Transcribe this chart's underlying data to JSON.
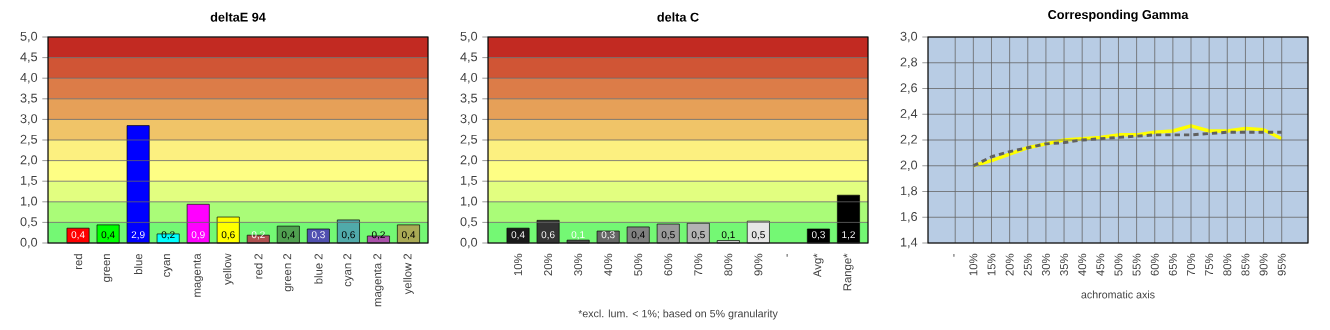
{
  "chart_data": [
    {
      "type": "bar",
      "title": "deltaE 94",
      "categories": [
        "red",
        "green",
        "blue",
        "cyan",
        "magenta",
        "yellow",
        "red 2",
        "green 2",
        "blue 2",
        "cyan 2",
        "magenta 2",
        "yellow 2"
      ],
      "values": [
        0.36,
        0.44,
        2.85,
        0.22,
        0.94,
        0.63,
        0.19,
        0.41,
        0.34,
        0.56,
        0.17,
        0.44
      ],
      "value_labels": [
        "0,4",
        "0,4",
        "2,9",
        "0,2",
        "0,9",
        "0,6",
        "0,2",
        "0,4",
        "0,3",
        "0,6",
        "0,2",
        "0,4"
      ],
      "colors": [
        "#ff0000",
        "#00ff00",
        "#0000ff",
        "#00ffff",
        "#ff00ff",
        "#ffff00",
        "#b05050",
        "#50a050",
        "#5050b0",
        "#50aaaa",
        "#aa50aa",
        "#aaaa55"
      ],
      "ylim": [
        0,
        5
      ],
      "yticks": [
        {
          "value": 0,
          "label": "0,0"
        },
        {
          "value": 0.5,
          "label": "0,5"
        },
        {
          "value": 1,
          "label": "1,0"
        },
        {
          "value": 1.5,
          "label": "1,5"
        },
        {
          "value": 2,
          "label": "2,0"
        },
        {
          "value": 2.5,
          "label": "2,5"
        },
        {
          "value": 3,
          "label": "3,0"
        },
        {
          "value": 3.5,
          "label": "3,5"
        },
        {
          "value": 4,
          "label": "4,0"
        },
        {
          "value": 4.5,
          "label": "4,5"
        },
        {
          "value": 5,
          "label": "5,0"
        }
      ],
      "bands": [
        {
          "axis": "y",
          "from": 0,
          "to": 0.5,
          "color": "#74f874"
        },
        {
          "axis": "y",
          "from": 0.5,
          "to": 1,
          "color": "#aafc78"
        },
        {
          "axis": "y",
          "from": 1,
          "to": 1.5,
          "color": "#e2fe80"
        },
        {
          "axis": "y",
          "from": 1.5,
          "to": 2,
          "color": "#fefe84"
        },
        {
          "axis": "y",
          "from": 2,
          "to": 2.5,
          "color": "#fcf080"
        },
        {
          "axis": "y",
          "from": 2.5,
          "to": 3,
          "color": "#f0c468"
        },
        {
          "axis": "y",
          "from": 3,
          "to": 3.5,
          "color": "#e6a058"
        },
        {
          "axis": "y",
          "from": 3.5,
          "to": 4,
          "color": "#dc7c48"
        },
        {
          "axis": "y",
          "from": 4,
          "to": 4.5,
          "color": "#d05535"
        },
        {
          "axis": "y",
          "from": 4.5,
          "to": 5,
          "color": "#c22a22"
        }
      ],
      "grid": "y"
    },
    {
      "type": "bar",
      "title": "delta C",
      "categories": [
        "10%",
        "20%",
        "30%",
        "40%",
        "50%",
        "60%",
        "70%",
        "80%",
        "90%",
        "-",
        "Avg*",
        "Range*"
      ],
      "values": [
        0.36,
        0.55,
        0.07,
        0.29,
        0.39,
        0.46,
        0.48,
        0.06,
        0.53,
        null,
        0.34,
        1.16
      ],
      "value_labels": [
        "0,4",
        "0,6",
        "0,1",
        "0,3",
        "0,4",
        "0,5",
        "0,5",
        "0,1",
        "0,5",
        null,
        "0,3",
        "1,2"
      ],
      "colors": [
        "#1a1a1a",
        "#333333",
        "#4d4d4d",
        "#666666",
        "#808080",
        "#999999",
        "#b3b3b3",
        "#cccccc",
        "#e6e6e6",
        null,
        "#000000",
        "#000000"
      ],
      "ylim": [
        0,
        5
      ],
      "yticks": [
        {
          "value": 0,
          "label": "0,0"
        },
        {
          "value": 0.5,
          "label": "0,5"
        },
        {
          "value": 1,
          "label": "1,0"
        },
        {
          "value": 1.5,
          "label": "1,5"
        },
        {
          "value": 2,
          "label": "2,0"
        },
        {
          "value": 2.5,
          "label": "2,5"
        },
        {
          "value": 3,
          "label": "3,0"
        },
        {
          "value": 3.5,
          "label": "3,5"
        },
        {
          "value": 4,
          "label": "4,0"
        },
        {
          "value": 4.5,
          "label": "4,5"
        },
        {
          "value": 5,
          "label": "5,0"
        }
      ],
      "bands": [
        {
          "axis": "y",
          "from": 0,
          "to": 0.5,
          "color": "#74f874"
        },
        {
          "axis": "y",
          "from": 0.5,
          "to": 1,
          "color": "#aafc78"
        },
        {
          "axis": "y",
          "from": 1,
          "to": 1.5,
          "color": "#e2fe80"
        },
        {
          "axis": "y",
          "from": 1.5,
          "to": 2,
          "color": "#fefe84"
        },
        {
          "axis": "y",
          "from": 2,
          "to": 2.5,
          "color": "#fcf080"
        },
        {
          "axis": "y",
          "from": 2.5,
          "to": 3,
          "color": "#f0c468"
        },
        {
          "axis": "y",
          "from": 3,
          "to": 3.5,
          "color": "#e6a058"
        },
        {
          "axis": "y",
          "from": 3.5,
          "to": 4,
          "color": "#dc7c48"
        },
        {
          "axis": "y",
          "from": 4,
          "to": 4.5,
          "color": "#d05535"
        },
        {
          "axis": "y",
          "from": 4.5,
          "to": 5,
          "color": "#c22a22"
        }
      ],
      "annotations": [
        "*excl. lum. < 1%; based on 5% granularity"
      ],
      "grid": "y"
    },
    {
      "type": "line",
      "title": "Corresponding Gamma",
      "xlabel": "achromatic axis",
      "categories": [
        "-",
        "10%",
        "15%",
        "20%",
        "25%",
        "30%",
        "35%",
        "40%",
        "45%",
        "50%",
        "55%",
        "60%",
        "65%",
        "70%",
        "75%",
        "80%",
        "85%",
        "90%",
        "95%"
      ],
      "series": [
        {
          "color": "#ffff00",
          "line_style": "solid",
          "values": [
            null,
            2.0,
            2.04,
            2.09,
            2.14,
            2.17,
            2.2,
            2.21,
            2.22,
            2.24,
            2.24,
            2.26,
            2.27,
            2.31,
            2.27,
            2.27,
            2.29,
            2.28,
            2.21
          ]
        },
        {
          "color": "#606060",
          "line_style": "dashed",
          "values": [
            null,
            2.0,
            2.07,
            2.11,
            2.14,
            2.17,
            2.18,
            2.2,
            2.21,
            2.22,
            2.23,
            2.24,
            2.24,
            2.24,
            2.25,
            2.26,
            2.26,
            2.26,
            2.26
          ]
        }
      ],
      "ylim": [
        1.4,
        3.0
      ],
      "yticks": [
        {
          "value": 1.4,
          "label": "1,4"
        },
        {
          "value": 1.6,
          "label": "1,6"
        },
        {
          "value": 1.8,
          "label": "1,8"
        },
        {
          "value": 2.0,
          "label": "2,0"
        },
        {
          "value": 2.2,
          "label": "2,2"
        },
        {
          "value": 2.4,
          "label": "2,4"
        },
        {
          "value": 2.6,
          "label": "2,6"
        },
        {
          "value": 2.8,
          "label": "2,8"
        },
        {
          "value": 3.0,
          "label": "3,0"
        }
      ],
      "grid": true,
      "marker": "none"
    }
  ]
}
